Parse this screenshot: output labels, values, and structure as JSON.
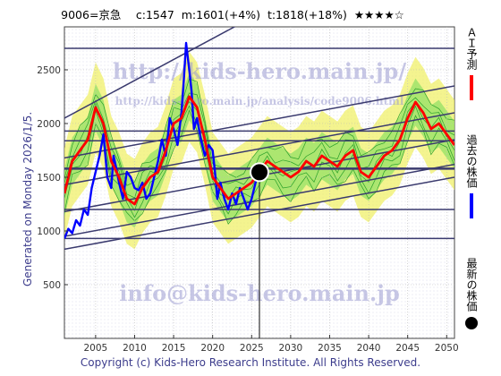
{
  "header": {
    "text": "9006=京急　 c:1547  m:1601(+4%)  t:1818(+18%)  ★★★★☆"
  },
  "side_label": "Generated on Monday 2026/1/5.",
  "footer": "Copyright (c) Kids-Hero Research Institute. All Rights Reserved.",
  "watermarks": {
    "url": "http://kids-hero.main.jp/",
    "analysis": "http://kids-hero.main.jp/analysis/code9006.html",
    "email": "info@kids-hero.main.jp"
  },
  "legend": [
    {
      "label": "ＡＩ予測",
      "color": "#ff0000",
      "mark": "line"
    },
    {
      "label": "過去の株価",
      "color": "#0000ff",
      "mark": "line"
    },
    {
      "label": "最新の株価",
      "color": "#000000",
      "mark": "dot"
    }
  ],
  "chart_data": {
    "type": "line",
    "title": "",
    "xlabel": "",
    "ylabel": "",
    "xlim": [
      2001,
      2051
    ],
    "ylim": [
      0,
      2900
    ],
    "x_ticks": [
      2005,
      2010,
      2015,
      2020,
      2025,
      2030,
      2035,
      2040,
      2045,
      2050
    ],
    "y_ticks": [
      500,
      1000,
      1500,
      2000,
      2500
    ],
    "grid": true,
    "latest_point": {
      "x": 2026.0,
      "y": 1547
    },
    "horizontal_levels": [
      2700,
      1930,
      1840,
      1580,
      1200,
      930
    ],
    "trend_channels": [
      {
        "x": [
          2001,
          2051
        ],
        "y": [
          1680,
          2350
        ]
      },
      {
        "x": [
          2001,
          2051
        ],
        "y": [
          1430,
          2100
        ]
      },
      {
        "x": [
          2001,
          2051
        ],
        "y": [
          1180,
          1850
        ]
      },
      {
        "x": [
          2001,
          2051
        ],
        "y": [
          950,
          1620
        ]
      },
      {
        "x": [
          2001,
          2051
        ],
        "y": [
          830,
          1500
        ]
      },
      {
        "x": [
          2001,
          2051
        ],
        "y": [
          2050,
          4000
        ]
      }
    ],
    "series": [
      {
        "name": "過去の株価",
        "color": "#0000ff",
        "x": [
          2001.0,
          2001.5,
          2002.0,
          2002.5,
          2003.0,
          2003.5,
          2004.0,
          2004.5,
          2005.0,
          2005.5,
          2006.0,
          2006.5,
          2007.0,
          2007.3,
          2007.6,
          2008.0,
          2008.5,
          2009.0,
          2009.5,
          2010.0,
          2010.5,
          2011.0,
          2011.5,
          2012.0,
          2012.5,
          2013.0,
          2013.5,
          2014.0,
          2014.5,
          2015.0,
          2015.5,
          2016.0,
          2016.3,
          2016.6,
          2017.0,
          2017.3,
          2017.6,
          2018.0,
          2018.5,
          2019.0,
          2019.5,
          2020.0,
          2020.3,
          2020.6,
          2021.0,
          2021.5,
          2022.0,
          2022.5,
          2023.0,
          2023.5,
          2024.0,
          2024.5,
          2025.0,
          2025.5,
          2026.0
        ],
        "y": [
          930,
          1020,
          980,
          1100,
          1050,
          1200,
          1150,
          1400,
          1550,
          1700,
          1900,
          1500,
          1400,
          1700,
          1600,
          1450,
          1300,
          1550,
          1500,
          1400,
          1380,
          1450,
          1300,
          1350,
          1500,
          1650,
          1850,
          1700,
          2050,
          1950,
          1800,
          2100,
          2400,
          2750,
          2500,
          2300,
          1950,
          2050,
          1850,
          1700,
          1800,
          1750,
          1550,
          1300,
          1450,
          1300,
          1200,
          1350,
          1250,
          1400,
          1300,
          1200,
          1300,
          1450,
          1547
        ]
      },
      {
        "name": "ＡＩ予測",
        "color": "#ff0000",
        "x": [
          2001,
          2002,
          2003,
          2004,
          2005,
          2006,
          2007,
          2008,
          2009,
          2010,
          2011,
          2012,
          2013,
          2014,
          2015,
          2016,
          2017,
          2018,
          2019,
          2020,
          2021,
          2022,
          2023,
          2024,
          2025,
          2026,
          2027,
          2028,
          2029,
          2030,
          2031,
          2032,
          2033,
          2034,
          2035,
          2036,
          2037,
          2038,
          2039,
          2040,
          2041,
          2042,
          2043,
          2044,
          2045,
          2046,
          2047,
          2048,
          2049,
          2050,
          2051
        ],
        "y": [
          1350,
          1650,
          1750,
          1850,
          2150,
          2000,
          1650,
          1500,
          1300,
          1250,
          1400,
          1500,
          1550,
          1750,
          2000,
          2050,
          2250,
          2150,
          1850,
          1500,
          1400,
          1300,
          1350,
          1400,
          1450,
          1550,
          1650,
          1600,
          1550,
          1500,
          1550,
          1650,
          1600,
          1700,
          1650,
          1600,
          1700,
          1750,
          1550,
          1500,
          1600,
          1700,
          1750,
          1850,
          2050,
          2200,
          2100,
          1950,
          2000,
          1900,
          1800
        ]
      }
    ],
    "band_fill": "#f0f060",
    "band_fill_inner": "#7cdc5c"
  }
}
